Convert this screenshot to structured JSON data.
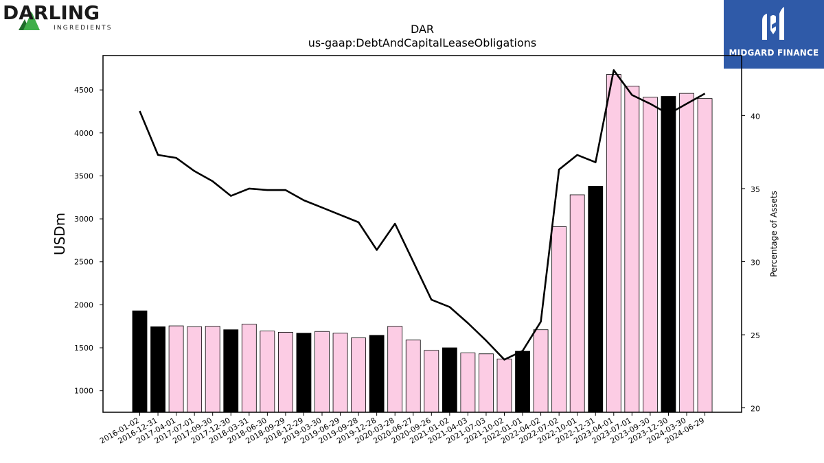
{
  "logos": {
    "left_brand": "DARLING",
    "left_sub": "INGREDIENTS",
    "right_brand": "MIDGARD FINANCE"
  },
  "colors": {
    "bar_pink": "#fccce4",
    "bar_black": "#000000",
    "line": "#000000",
    "logo_green_dark": "#1f6b2a",
    "logo_green_light": "#3fae49",
    "logo_blue": "#2f5aa8"
  },
  "chart_data": {
    "type": "bar",
    "title": "DAR",
    "subtitle": "us-gaap:DebtAndCapitalLeaseObligations",
    "ylabel": "USDm",
    "y2label": "Percentage of Assets",
    "ylim": [
      750,
      4900
    ],
    "y2lim": [
      19.7,
      44.1
    ],
    "yticks": [
      1000,
      1500,
      2000,
      2500,
      3000,
      3500,
      4000,
      4500
    ],
    "y2ticks": [
      20,
      25,
      30,
      35,
      40
    ],
    "categories": [
      "2016-01-02",
      "2016-12-31",
      "2017-04-01",
      "2017-07-01",
      "2017-09-30",
      "2017-12-30",
      "2018-03-31",
      "2018-06-30",
      "2018-09-29",
      "2018-12-29",
      "2019-03-30",
      "2019-06-29",
      "2019-09-28",
      "2019-12-28",
      "2020-03-28",
      "2020-06-27",
      "2020-09-26",
      "2021-01-02",
      "2021-04-03",
      "2021-07-03",
      "2021-10-02",
      "2022-01-01",
      "2022-04-02",
      "2022-07-02",
      "2022-10-01",
      "2022-12-31",
      "2023-04-01",
      "2023-07-01",
      "2023-09-30",
      "2023-12-30",
      "2024-03-30",
      "2024-06-29"
    ],
    "highlight": [
      true,
      true,
      false,
      false,
      false,
      true,
      false,
      false,
      false,
      true,
      false,
      false,
      false,
      true,
      false,
      false,
      false,
      true,
      false,
      false,
      false,
      true,
      false,
      false,
      false,
      true,
      false,
      false,
      false,
      true,
      false,
      false
    ],
    "series": [
      {
        "type": "bar",
        "axis": "left",
        "values": [
          1930,
          1745,
          1755,
          1745,
          1750,
          1710,
          1775,
          1695,
          1680,
          1670,
          1690,
          1670,
          1615,
          1645,
          1750,
          1590,
          1470,
          1500,
          1440,
          1430,
          1370,
          1460,
          1710,
          2910,
          3280,
          3380,
          4680,
          4545,
          4415,
          4425,
          4460,
          4400
        ]
      },
      {
        "type": "line",
        "axis": "right",
        "values": [
          40.3,
          37.3,
          37.1,
          36.2,
          35.5,
          34.5,
          35.0,
          34.9,
          34.9,
          34.2,
          33.7,
          33.2,
          32.7,
          30.8,
          32.6,
          30.0,
          27.4,
          26.9,
          25.8,
          24.6,
          23.3,
          23.9,
          25.9,
          36.3,
          37.3,
          36.8,
          43.1,
          41.4,
          40.8,
          40.1,
          40.8,
          41.5
        ]
      }
    ]
  }
}
